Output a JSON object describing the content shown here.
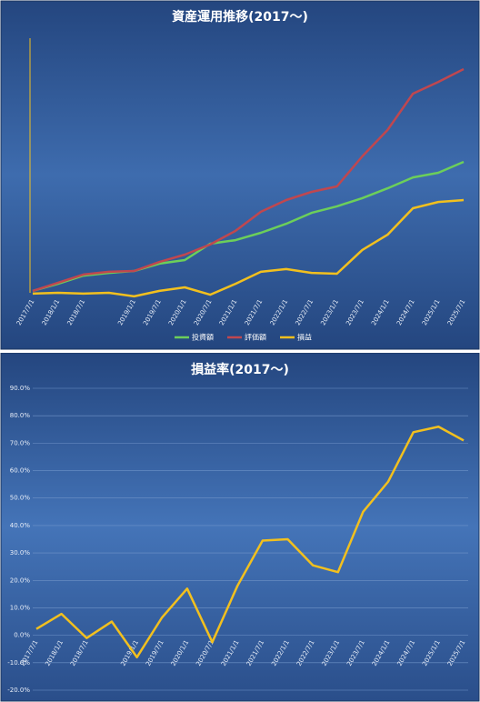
{
  "chart_data": [
    {
      "type": "line",
      "title": "資産運用推移(2017〜)",
      "categories": [
        "2017/7/1",
        "2018/1/1",
        "2018/7/1",
        null,
        "2019/1/1",
        "2019/7/1",
        "2020/1/1",
        "2020/7/1",
        "2021/1/1",
        "2021/7/1",
        "2022/1/1",
        "2022/7/1",
        "2023/1/1",
        "2023/7/1",
        "2024/1/1",
        "2024/7/1",
        "2025/1/1",
        "2025/7/1"
      ],
      "series": [
        {
          "name": "投資額",
          "color": "#6ccf5a",
          "values": [
            6.7,
            9.3,
            12.3,
            13.3,
            14,
            16.7,
            18,
            24,
            25.3,
            28,
            31.3,
            35.3,
            37.7,
            40.7,
            44.3,
            48.3,
            50,
            54
          ]
        },
        {
          "name": "評価額",
          "color": "#c0474f",
          "values": [
            6.7,
            9.7,
            12.7,
            13.7,
            14,
            17.3,
            20,
            23.7,
            28.7,
            35.7,
            40,
            43,
            45,
            56,
            65.7,
            79,
            83.3,
            88
          ]
        },
        {
          "name": "損益",
          "color": "#f2c01e",
          "values": [
            5.7,
            6,
            5.7,
            6,
            4.7,
            6.7,
            8,
            5.3,
            9.3,
            13.7,
            14.7,
            13.3,
            13,
            21.7,
            27.3,
            37,
            39.3,
            40
          ]
        }
      ],
      "ylim": [
        0,
        100
      ],
      "legend": "bottom"
    },
    {
      "type": "line",
      "title": "損益率(2017〜)",
      "categories": [
        "2017/7/1",
        "2018/1/1",
        "2018/7/1",
        null,
        "2019/1/1",
        "2019/7/1",
        "2020/1/1",
        "2020/7/1",
        "2021/1/1",
        "2021/7/1",
        "2022/1/1",
        "2022/7/1",
        "2023/1/1",
        "2023/7/1",
        "2024/1/1",
        "2024/7/1",
        "2025/1/1",
        "2025/7/1"
      ],
      "series": [
        {
          "name": "損益率",
          "color": "#f2c01e",
          "values": [
            2.3,
            7.8,
            -1,
            5,
            -8,
            6.5,
            17,
            -2.5,
            18,
            34.5,
            35,
            25.5,
            23,
            45,
            56,
            74,
            76,
            71
          ]
        }
      ],
      "ylim": [
        -20,
        90
      ],
      "yticks": [
        {
          "value": -20,
          "label": "-20.0%"
        },
        {
          "value": -10,
          "label": "-10.0%"
        },
        {
          "value": 0,
          "label": "0.0%"
        },
        {
          "value": 10,
          "label": "10.0%"
        },
        {
          "value": 20,
          "label": "20.0%"
        },
        {
          "value": 30,
          "label": "30.0%"
        },
        {
          "value": 40,
          "label": "40.0%"
        },
        {
          "value": 50,
          "label": "50.0%"
        },
        {
          "value": 60,
          "label": "60.0%"
        },
        {
          "value": 70,
          "label": "70.0%"
        },
        {
          "value": 80,
          "label": "80.0%"
        },
        {
          "value": 90,
          "label": "90.0%"
        }
      ],
      "grid": true,
      "legend": "none"
    }
  ]
}
